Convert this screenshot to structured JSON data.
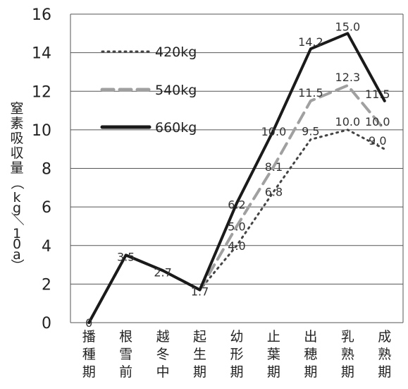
{
  "chart_data": {
    "type": "line",
    "title": "",
    "xlabel": "",
    "ylabel": "窒素吸収量（kg／10a）",
    "ylim": [
      0,
      16
    ],
    "yticks": [
      0,
      2,
      4,
      6,
      8,
      10,
      12,
      14,
      16
    ],
    "grid": true,
    "legend_position": "top-left",
    "categories": [
      "播種期",
      "根雪前",
      "越冬中",
      "起生期",
      "幼形期",
      "止葉期",
      "出穂期",
      "乳熟期",
      "成熟期"
    ],
    "series": [
      {
        "name": "420kg",
        "style": "dotted",
        "color": "#444444",
        "values": [
          0,
          3.5,
          2.7,
          1.7,
          4.0,
          6.8,
          9.5,
          10.0,
          9.0
        ],
        "labels": [
          null,
          null,
          null,
          null,
          "4.0",
          "6.8",
          "9.5",
          "10.0",
          "9.0"
        ]
      },
      {
        "name": "540kg",
        "style": "dashed",
        "color": "#a0a0a0",
        "values": [
          0,
          3.5,
          2.7,
          1.7,
          5.0,
          8.1,
          11.5,
          12.3,
          10.0
        ],
        "labels": [
          null,
          null,
          null,
          null,
          "5.0",
          "8.1",
          "11.5",
          "12.3",
          "10.0"
        ]
      },
      {
        "name": "660kg",
        "style": "solid",
        "color": "#1a1a1a",
        "values": [
          0,
          3.5,
          2.7,
          1.7,
          6.2,
          10.0,
          14.2,
          15.0,
          11.5
        ],
        "labels": [
          "0",
          "3.5",
          "2.7",
          "1.7",
          "6.2",
          "10.0",
          "14.2",
          "15.0",
          "11.5"
        ]
      }
    ]
  }
}
